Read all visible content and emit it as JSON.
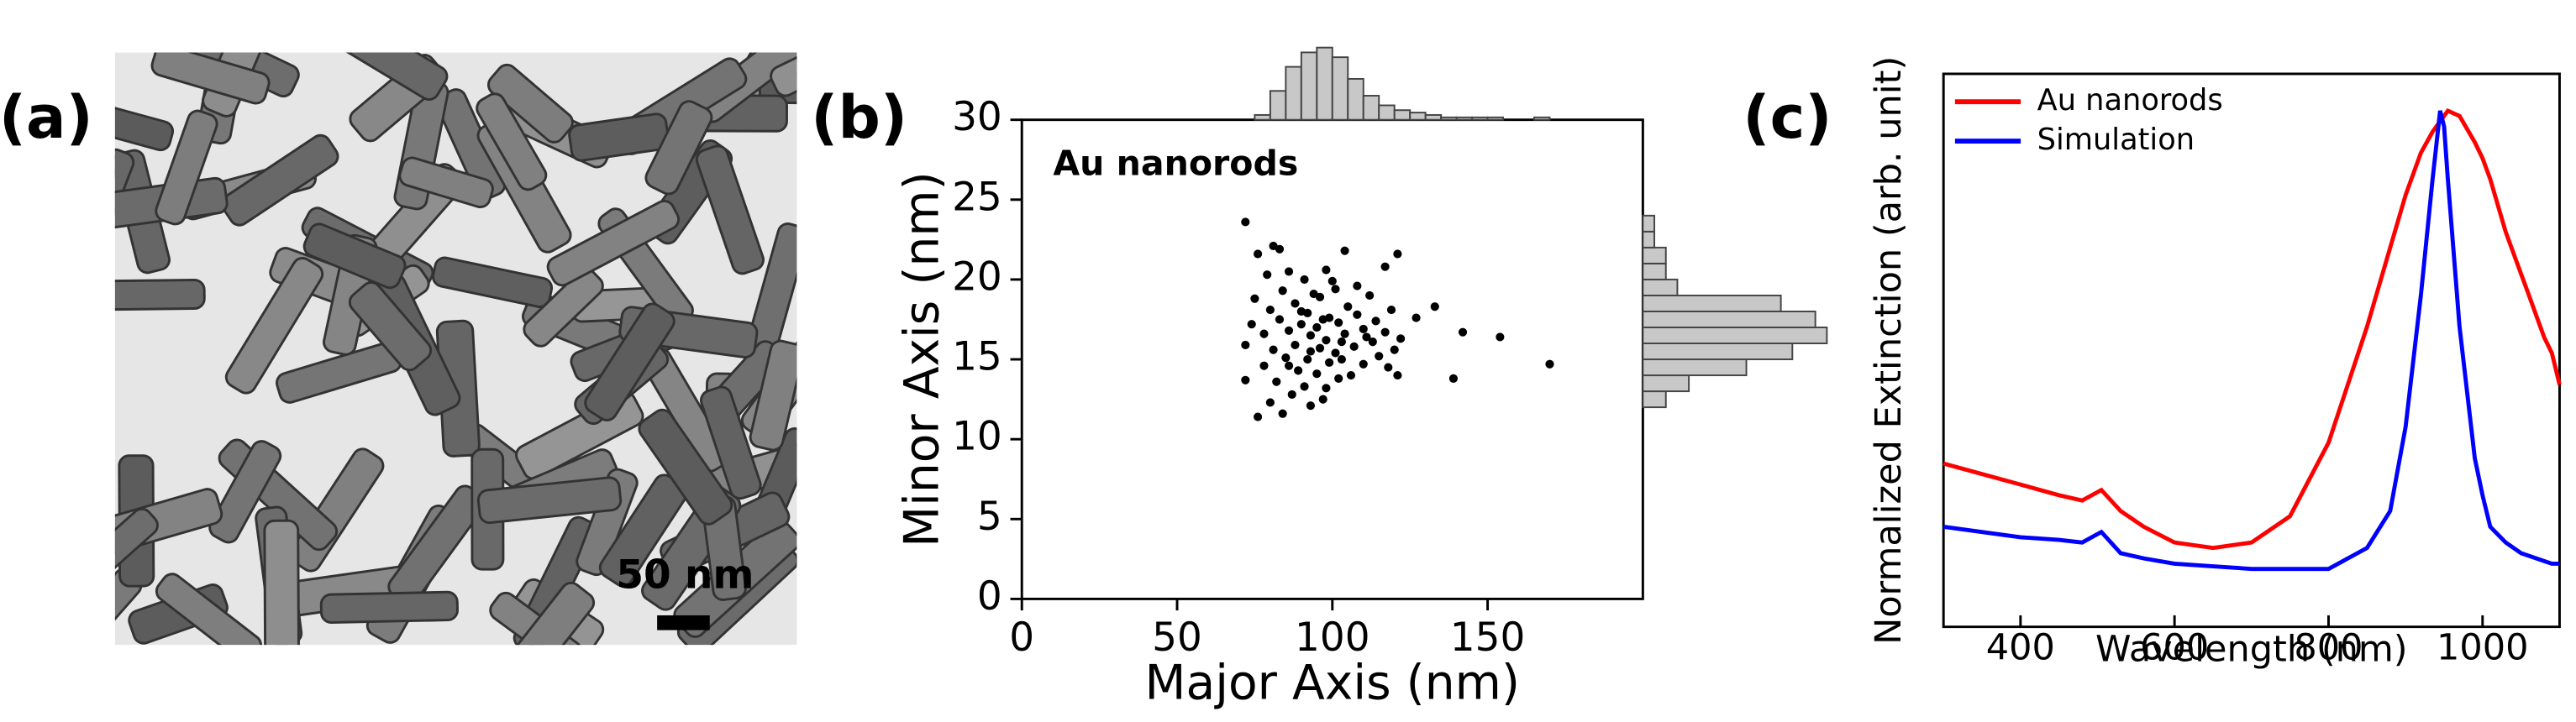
{
  "figure": {
    "panel_labels": [
      "(a)",
      "(b)",
      "(c)"
    ],
    "scale_bar": "50 nm"
  },
  "chart_data": [
    {
      "type": "scatter",
      "annotation": "Au nanorods",
      "x_label": "Major Axis (nm)",
      "y_label": "Minor Axis (nm)",
      "color": "#000000",
      "xlim": [
        0,
        200
      ],
      "xticks": [
        0,
        50,
        100,
        150
      ],
      "ylim": [
        0,
        30
      ],
      "yticks": [
        0,
        5,
        10,
        15,
        20,
        25,
        30
      ],
      "x": [
        72,
        81,
        83,
        76,
        104,
        121,
        117,
        79,
        86,
        91,
        98,
        108,
        84,
        94,
        101,
        112,
        75,
        88,
        96,
        105,
        119,
        133,
        80,
        92,
        99,
        108,
        114,
        127,
        74,
        83,
        90,
        95,
        102,
        110,
        117,
        142,
        154,
        78,
        86,
        93,
        98,
        104,
        113,
        122,
        72,
        81,
        88,
        96,
        101,
        107,
        115,
        120,
        85,
        92,
        99,
        103,
        110,
        118,
        170,
        78,
        89,
        95,
        106,
        121,
        139,
        72,
        82,
        91,
        98,
        87,
        80,
        93,
        76,
        84,
        97,
        102,
        111,
        90,
        97,
        103,
        93,
        100,
        86
      ],
      "y": [
        23.6,
        22.1,
        21.9,
        21.6,
        21.8,
        21.6,
        20.8,
        20.3,
        20.5,
        20.0,
        20.6,
        19.6,
        19.3,
        19.1,
        19.4,
        19.0,
        18.8,
        18.5,
        18.9,
        18.3,
        18.1,
        18.3,
        18.1,
        17.9,
        17.6,
        17.8,
        17.4,
        17.6,
        17.2,
        17.5,
        17.2,
        17.0,
        17.3,
        16.9,
        16.7,
        16.7,
        16.4,
        16.6,
        16.8,
        16.5,
        16.2,
        16.6,
        16.1,
        16.3,
        15.9,
        15.6,
        15.9,
        15.7,
        15.4,
        15.8,
        15.2,
        15.6,
        15.1,
        15.0,
        14.8,
        15.0,
        14.7,
        14.5,
        14.7,
        14.6,
        14.3,
        14.1,
        14.0,
        14.0,
        13.8,
        13.7,
        13.6,
        13.3,
        13.2,
        12.8,
        12.3,
        12.1,
        11.4,
        11.6,
        12.5,
        13.8,
        16.4,
        18.0,
        17.5,
        16.1,
        15.5,
        19.9,
        14.6
      ]
    },
    {
      "type": "histogram",
      "orientation": "vertical",
      "color": "#c8c8c8",
      "bins": [
        75,
        80,
        85,
        90,
        95,
        100,
        105,
        110,
        115,
        120,
        125,
        130,
        135,
        140,
        145,
        150,
        155,
        160,
        165,
        170,
        175
      ],
      "counts": [
        2,
        12,
        22,
        28,
        30,
        26,
        17,
        10,
        6,
        4,
        3,
        2,
        1,
        1,
        1,
        1,
        0,
        0,
        1,
        0
      ]
    },
    {
      "type": "histogram",
      "orientation": "horizontal",
      "color": "#c8c8c8",
      "bins": [
        12,
        13,
        14,
        15,
        16,
        17,
        18,
        19,
        20,
        21,
        22,
        23,
        24
      ],
      "counts": [
        2,
        4,
        9,
        13,
        16,
        15,
        12,
        3,
        2,
        2,
        1,
        1
      ]
    },
    {
      "type": "line",
      "x_label": "Wavelength (nm)",
      "y_label": "Normalized Extinction (arb. unit)",
      "legend": "upper left",
      "xlim": [
        300,
        1100
      ],
      "xticks": [
        400,
        600,
        800,
        1000
      ],
      "ylim": [
        0,
        1.05
      ],
      "x": [
        300,
        350,
        400,
        450,
        480,
        505,
        530,
        560,
        600,
        650,
        700,
        750,
        800,
        850,
        880,
        900,
        920,
        935,
        945,
        950,
        955,
        970,
        990,
        1000,
        1010,
        1030,
        1050,
        1060,
        1080,
        1090,
        1100
      ],
      "series": [
        {
          "name": "Au nanorods",
          "color": "#ff0000",
          "values": [
            0.31,
            0.29,
            0.27,
            0.25,
            0.24,
            0.26,
            0.22,
            0.19,
            0.16,
            0.15,
            0.16,
            0.21,
            0.35,
            0.57,
            0.72,
            0.82,
            0.9,
            0.94,
            0.96,
            0.97,
            0.98,
            0.97,
            0.92,
            0.89,
            0.85,
            0.75,
            0.67,
            0.63,
            0.55,
            0.52,
            0.46
          ]
        },
        {
          "name": "Simulation",
          "color": "#0000ff",
          "values": [
            0.19,
            0.18,
            0.17,
            0.165,
            0.16,
            0.18,
            0.14,
            0.13,
            0.12,
            0.115,
            0.11,
            0.11,
            0.11,
            0.15,
            0.22,
            0.38,
            0.63,
            0.85,
            0.98,
            0.95,
            0.85,
            0.57,
            0.32,
            0.25,
            0.19,
            0.16,
            0.14,
            0.135,
            0.125,
            0.12,
            0.12
          ]
        }
      ]
    }
  ]
}
